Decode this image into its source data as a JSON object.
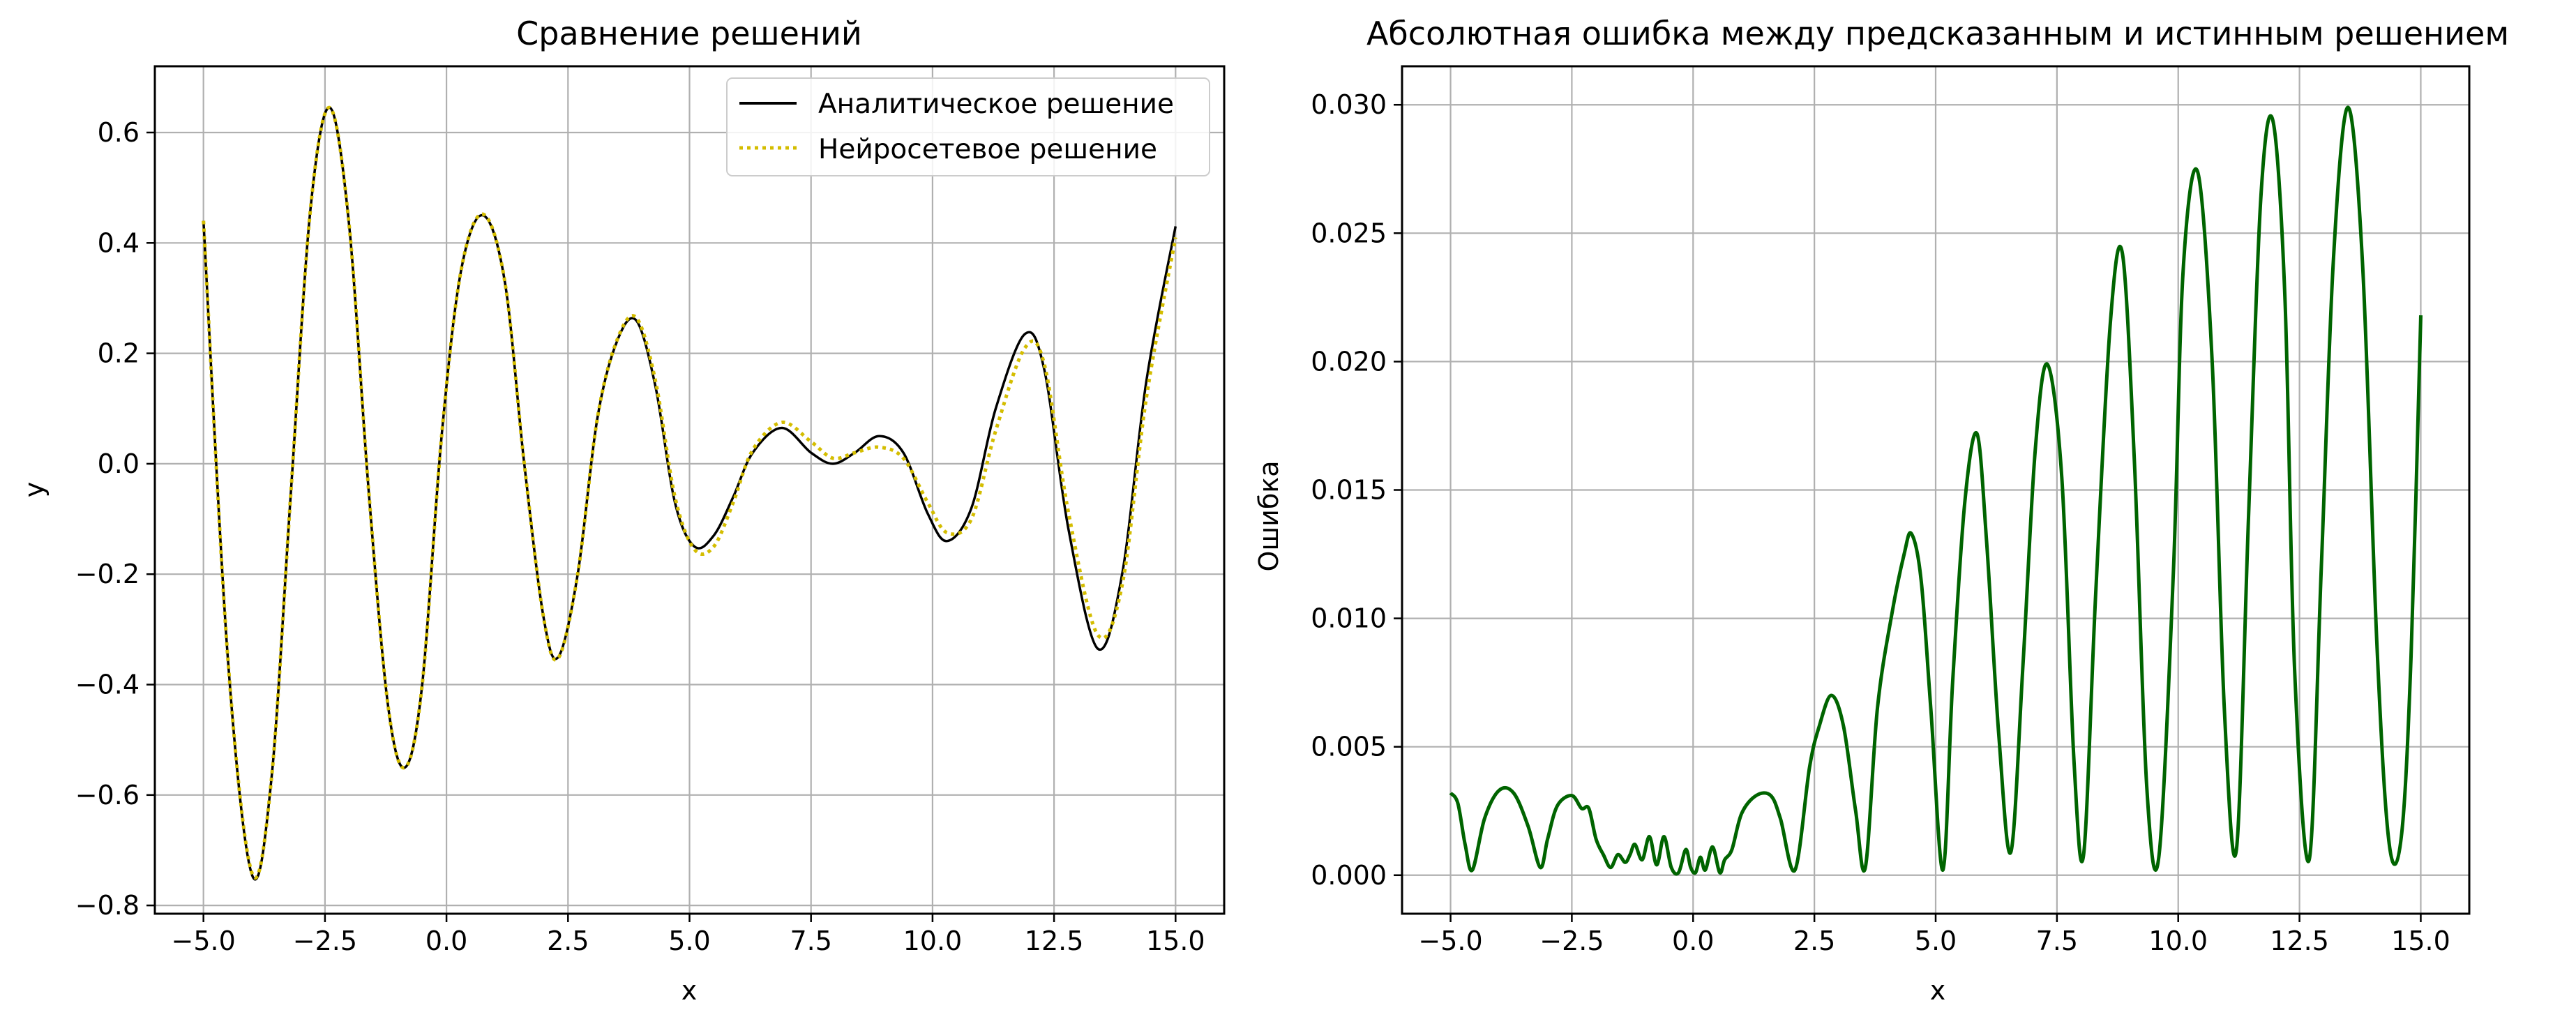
{
  "chart_data": [
    {
      "type": "line",
      "title": "Сравнение решений",
      "xlabel": "x",
      "ylabel": "y",
      "xlim": [
        -6.0,
        16.0
      ],
      "ylim": [
        -0.815,
        0.72
      ],
      "xticks": [
        -5.0,
        -2.5,
        0.0,
        2.5,
        5.0,
        7.5,
        10.0,
        12.5,
        15.0
      ],
      "xtick_labels": [
        "−5.0",
        "−2.5",
        "0.0",
        "2.5",
        "5.0",
        "7.5",
        "10.0",
        "12.5",
        "15.0"
      ],
      "yticks": [
        -0.8,
        -0.6,
        -0.4,
        -0.2,
        0.0,
        0.2,
        0.4,
        0.6
      ],
      "ytick_labels": [
        "−0.8",
        "−0.6",
        "−0.4",
        "−0.2",
        "0.0",
        "0.2",
        "0.4",
        "0.6"
      ],
      "grid": true,
      "legend_position": "top-right",
      "series": [
        {
          "name": "Аналитическое решение",
          "color": "#000000",
          "style": "solid",
          "x": [
            -5.0,
            -4.5,
            -4.0,
            -3.6,
            -3.2,
            -2.8,
            -2.4,
            -2.0,
            -1.6,
            -1.2,
            -0.85,
            -0.5,
            -0.1,
            0.3,
            0.75,
            1.2,
            1.6,
            2.0,
            2.3,
            2.7,
            3.1,
            3.5,
            3.9,
            4.3,
            4.7,
            5.1,
            5.5,
            5.9,
            6.3,
            6.9,
            7.5,
            7.95,
            8.4,
            8.9,
            9.4,
            9.9,
            10.3,
            10.8,
            11.3,
            11.9,
            12.3,
            12.8,
            13.4,
            13.9,
            14.4,
            15.0
          ],
          "y": [
            0.44,
            -0.35,
            -0.745,
            -0.57,
            -0.05,
            0.46,
            0.645,
            0.43,
            -0.05,
            -0.44,
            -0.55,
            -0.4,
            0.05,
            0.35,
            0.45,
            0.33,
            0.0,
            -0.28,
            -0.35,
            -0.2,
            0.08,
            0.22,
            0.26,
            0.14,
            -0.07,
            -0.15,
            -0.13,
            -0.06,
            0.02,
            0.065,
            0.02,
            0.0,
            0.02,
            0.05,
            0.02,
            -0.09,
            -0.14,
            -0.08,
            0.1,
            0.235,
            0.17,
            -0.12,
            -0.335,
            -0.2,
            0.15,
            0.43
          ]
        },
        {
          "name": "Нейросетевое решение",
          "color": "#d4bd00",
          "style": "dotted",
          "x": [
            -5.0,
            -4.5,
            -4.0,
            -3.6,
            -3.2,
            -2.8,
            -2.4,
            -2.0,
            -1.6,
            -1.2,
            -0.85,
            -0.5,
            -0.1,
            0.3,
            0.75,
            1.2,
            1.6,
            2.0,
            2.3,
            2.7,
            3.1,
            3.5,
            3.9,
            4.3,
            4.7,
            5.1,
            5.5,
            5.9,
            6.3,
            6.9,
            7.5,
            7.95,
            8.4,
            8.9,
            9.4,
            9.9,
            10.3,
            10.8,
            11.3,
            11.9,
            12.3,
            12.8,
            13.4,
            13.9,
            14.4,
            15.0
          ],
          "y": [
            0.44,
            -0.35,
            -0.742,
            -0.57,
            -0.05,
            0.46,
            0.645,
            0.43,
            -0.05,
            -0.44,
            -0.55,
            -0.4,
            0.05,
            0.35,
            0.452,
            0.33,
            0.0,
            -0.28,
            -0.352,
            -0.2,
            0.08,
            0.222,
            0.265,
            0.15,
            -0.06,
            -0.155,
            -0.15,
            -0.07,
            0.025,
            0.075,
            0.04,
            0.01,
            0.02,
            0.03,
            0.01,
            -0.07,
            -0.125,
            -0.1,
            0.06,
            0.21,
            0.18,
            -0.09,
            -0.31,
            -0.22,
            0.12,
            0.41
          ]
        }
      ]
    },
    {
      "type": "line",
      "title": "Абсолютная ошибка между предсказанным и истинным решением",
      "xlabel": "x",
      "ylabel": "Ошибка",
      "xlim": [
        -6.0,
        16.0
      ],
      "ylim": [
        -0.0015,
        0.0315
      ],
      "xticks": [
        -5.0,
        -2.5,
        0.0,
        2.5,
        5.0,
        7.5,
        10.0,
        12.5,
        15.0
      ],
      "xtick_labels": [
        "−5.0",
        "−2.5",
        "0.0",
        "2.5",
        "5.0",
        "7.5",
        "10.0",
        "12.5",
        "15.0"
      ],
      "yticks": [
        0.0,
        0.005,
        0.01,
        0.015,
        0.02,
        0.025,
        0.03
      ],
      "ytick_labels": [
        "0.000",
        "0.005",
        "0.010",
        "0.015",
        "0.020",
        "0.025",
        "0.030"
      ],
      "grid": true,
      "series": [
        {
          "color": "#006400",
          "style": "solid",
          "x": [
            -5.0,
            -4.85,
            -4.7,
            -4.55,
            -4.3,
            -4.0,
            -3.7,
            -3.4,
            -3.15,
            -3.0,
            -2.8,
            -2.5,
            -2.3,
            -2.15,
            -2.0,
            -1.85,
            -1.7,
            -1.55,
            -1.4,
            -1.3,
            -1.2,
            -1.05,
            -0.9,
            -0.75,
            -0.6,
            -0.45,
            -0.3,
            -0.15,
            -0.05,
            0.05,
            0.15,
            0.25,
            0.4,
            0.55,
            0.65,
            0.8,
            1.0,
            1.3,
            1.6,
            1.8,
            2.1,
            2.4,
            2.6,
            2.85,
            3.1,
            3.35,
            3.55,
            3.8,
            4.1,
            4.35,
            4.5,
            4.7,
            4.9,
            5.15,
            5.35,
            5.6,
            5.85,
            6.05,
            6.3,
            6.55,
            6.8,
            7.05,
            7.3,
            7.6,
            7.85,
            8.05,
            8.3,
            8.6,
            8.85,
            9.1,
            9.35,
            9.6,
            9.9,
            10.1,
            10.4,
            10.7,
            10.95,
            11.2,
            11.45,
            11.7,
            11.95,
            12.2,
            12.4,
            12.7,
            12.95,
            13.2,
            13.5,
            13.8,
            14.1,
            14.35,
            14.6,
            14.8,
            15.0
          ],
          "y": [
            0.0032,
            0.0028,
            0.0012,
            0.0002,
            0.0022,
            0.0033,
            0.0032,
            0.0019,
            0.0003,
            0.0014,
            0.0027,
            0.0031,
            0.0026,
            0.0026,
            0.0014,
            0.0008,
            0.0003,
            0.0008,
            0.0005,
            0.0008,
            0.0012,
            0.0006,
            0.0015,
            0.0004,
            0.0015,
            0.0003,
            0.0001,
            0.001,
            0.0003,
            0.0001,
            0.0007,
            0.0002,
            0.0011,
            0.0001,
            0.0006,
            0.001,
            0.0024,
            0.0031,
            0.0031,
            0.0022,
            0.0002,
            0.0042,
            0.0058,
            0.007,
            0.0058,
            0.0025,
            0.0003,
            0.0065,
            0.0102,
            0.0125,
            0.0133,
            0.0115,
            0.0065,
            0.0002,
            0.0075,
            0.0145,
            0.0172,
            0.013,
            0.0055,
            0.0009,
            0.0082,
            0.0165,
            0.0199,
            0.0155,
            0.0045,
            0.0008,
            0.011,
            0.0215,
            0.0242,
            0.016,
            0.0035,
            0.0007,
            0.0118,
            0.0235,
            0.0274,
            0.02,
            0.0065,
            0.001,
            0.014,
            0.0263,
            0.0294,
            0.0225,
            0.008,
            0.0006,
            0.012,
            0.024,
            0.0299,
            0.0238,
            0.0088,
            0.0012,
            0.0015,
            0.0085,
            0.0218
          ]
        }
      ]
    }
  ]
}
